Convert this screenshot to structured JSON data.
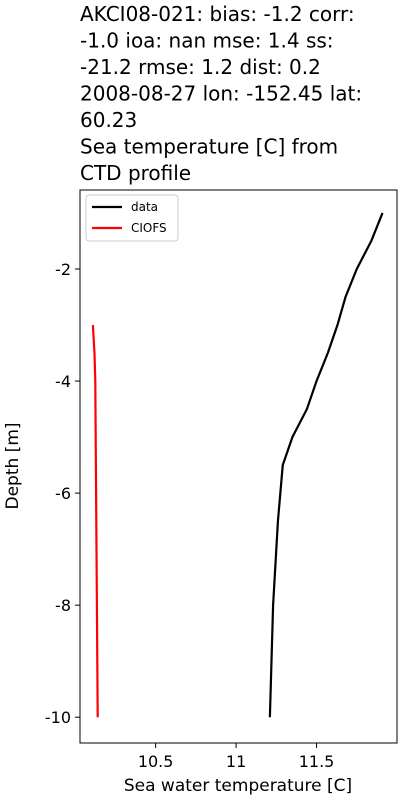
{
  "chart_data": {
    "type": "line",
    "title": [
      "AKCI08-021: bias: -1.2  corr:",
      "-1.0  ioa: nan  mse: 1.4  ss:",
      "-21.2  rmse: 1.2  dist: 0.2",
      "2008-08-27 lon: -152.45 lat:",
      "60.23",
      "Sea temperature [C] from",
      "CTD profile"
    ],
    "xlabel": "Sea water temperature [C]",
    "ylabel": "Depth [m]",
    "xlim": [
      10.03,
      12.0
    ],
    "ylim": [
      -10.46,
      -0.59
    ],
    "xticks": [
      10.5,
      11.0,
      11.5
    ],
    "yticks": [
      -10,
      -8,
      -6,
      -4,
      -2
    ],
    "legend": "upper left",
    "series": [
      {
        "name": "data",
        "color": "#000000",
        "x": [
          11.91,
          11.84,
          11.75,
          11.68,
          11.63,
          11.57,
          11.5,
          11.44,
          11.35,
          11.29,
          11.275,
          11.26,
          11.25,
          11.23,
          11.22,
          11.21
        ],
        "y": [
          -1.0,
          -1.5,
          -2.0,
          -2.5,
          -3.0,
          -3.5,
          -4.0,
          -4.5,
          -5.0,
          -5.5,
          -6.0,
          -6.5,
          -7.0,
          -8.0,
          -9.0,
          -10.0
        ]
      },
      {
        "name": "CIOFS",
        "color": "#ff0000",
        "x": [
          10.11,
          10.12,
          10.125,
          10.13,
          10.135,
          10.14
        ],
        "y": [
          -3.0,
          -3.5,
          -4.0,
          -6.0,
          -8.0,
          -10.0
        ]
      }
    ]
  }
}
